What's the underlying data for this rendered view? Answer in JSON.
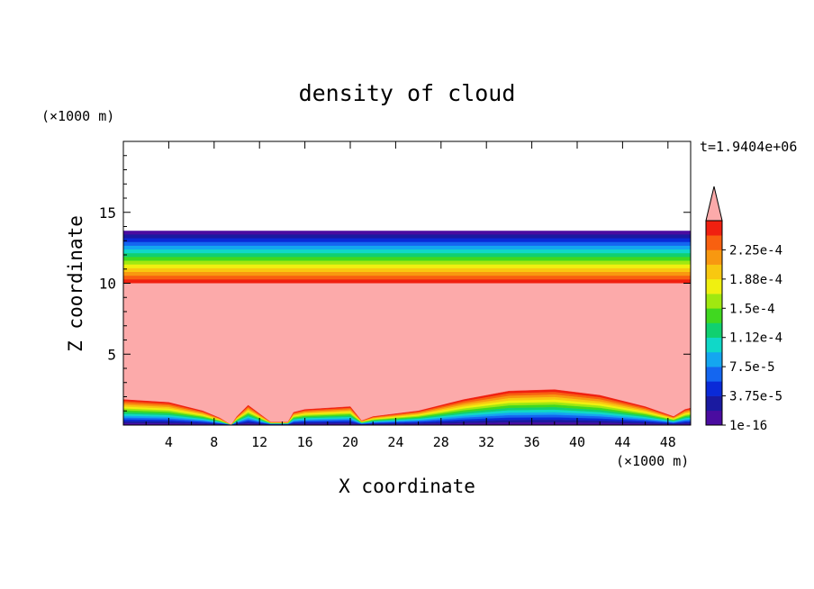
{
  "chart_data": {
    "type": "heatmap",
    "title": "density of cloud",
    "xlabel": "X coordinate",
    "ylabel": "Z coordinate",
    "x_unit": "(×1000 m)",
    "y_unit": "(×1000 m)",
    "time_label": "t=1.9404e+06",
    "xlim": [
      0,
      50
    ],
    "ylim": [
      0,
      20
    ],
    "x_ticks": [
      "4",
      "8",
      "12",
      "16",
      "20",
      "24",
      "28",
      "32",
      "36",
      "40",
      "44",
      "48"
    ],
    "y_ticks": [
      "5",
      "10",
      "15"
    ],
    "colorbar_labels": [
      "1e-16",
      "3.75e-5",
      "7.5e-5",
      "1.12e-4",
      "1.5e-4",
      "1.88e-4",
      "2.25e-4"
    ],
    "colorbar_colors": [
      "#4a0ca0",
      "#1a1aa0",
      "#0a2ad8",
      "#1466f0",
      "#14a6f0",
      "#10d8c8",
      "#10d070",
      "#40d820",
      "#a0e810",
      "#f0f010",
      "#f8c810",
      "#f89810",
      "#f86010",
      "#f02010"
    ],
    "overflow_color": "#fcaaaa",
    "fields": {
      "saturated_region": {
        "z_bottom_min": 0.2,
        "z_top": 10.0,
        "value": ">2.25e-4"
      },
      "upper_gradient_band": {
        "z_from": 10.0,
        "z_to": 13.7
      },
      "lower_surface_profile": [
        {
          "x": 0,
          "z": 1.8
        },
        {
          "x": 4,
          "z": 1.6
        },
        {
          "x": 7,
          "z": 1.0
        },
        {
          "x": 8.5,
          "z": 0.5
        },
        {
          "x": 9.5,
          "z": 0
        },
        {
          "x": 10,
          "z": 0.6
        },
        {
          "x": 11,
          "z": 1.4
        },
        {
          "x": 12,
          "z": 0.8
        },
        {
          "x": 13,
          "z": 0.2
        },
        {
          "x": 14.5,
          "z": 0.2
        },
        {
          "x": 15,
          "z": 0.9
        },
        {
          "x": 16,
          "z": 1.1
        },
        {
          "x": 18,
          "z": 1.2
        },
        {
          "x": 20,
          "z": 1.3
        },
        {
          "x": 21,
          "z": 0.3
        },
        {
          "x": 22,
          "z": 0.6
        },
        {
          "x": 26,
          "z": 1.0
        },
        {
          "x": 30,
          "z": 1.8
        },
        {
          "x": 34,
          "z": 2.4
        },
        {
          "x": 38,
          "z": 2.5
        },
        {
          "x": 42,
          "z": 2.1
        },
        {
          "x": 46,
          "z": 1.3
        },
        {
          "x": 48.5,
          "z": 0.6
        },
        {
          "x": 49.5,
          "z": 1.1
        },
        {
          "x": 50,
          "z": 1.2
        }
      ]
    }
  }
}
